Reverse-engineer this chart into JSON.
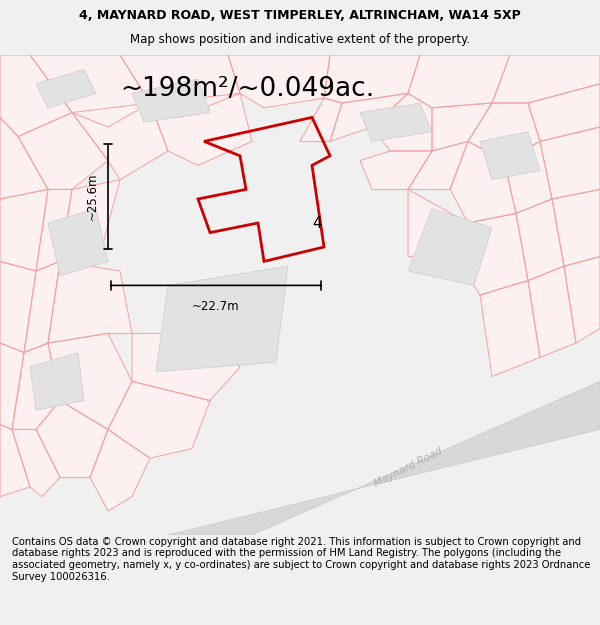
{
  "title_line1": "4, MAYNARD ROAD, WEST TIMPERLEY, ALTRINCHAM, WA14 5XP",
  "title_line2": "Map shows position and indicative extent of the property.",
  "area_text": "~198m²/~0.049ac.",
  "dim_width": "~22.7m",
  "dim_height": "~25.6m",
  "label_number": "4",
  "footer_text": "Contains OS data © Crown copyright and database right 2021. This information is subject to Crown copyright and database rights 2023 and is reproduced with the permission of HM Land Registry. The polygons (including the associated geometry, namely x, y co-ordinates) are subject to Crown copyright and database rights 2023 Ordnance Survey 100026316.",
  "bg_color": "#f0f0f0",
  "map_bg": "#ffffff",
  "property_color": "#cc0000",
  "road_label_color": "#b0b0b0",
  "building_fill": "#e2e2e2",
  "building_edge": "#cccccc",
  "bg_line_color": "#f5a0a0",
  "bg_fill_color": "#fdf0f0",
  "title_fontsize": 9.0,
  "subtitle_fontsize": 8.5,
  "area_fontsize": 19,
  "footer_fontsize": 7.2,
  "dim_fontsize": 8.5,
  "label_fontsize": 11
}
